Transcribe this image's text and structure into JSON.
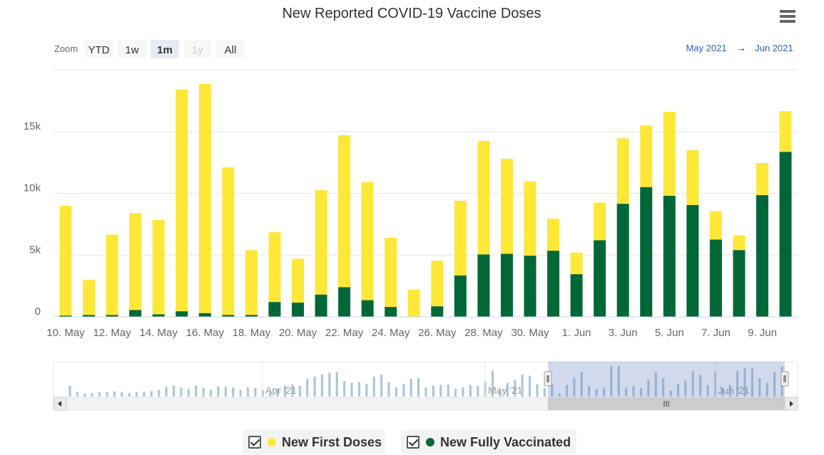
{
  "chart_data": {
    "type": "bar",
    "stacked": true,
    "title": "New Reported COVID-19 Vaccine Doses",
    "zoom": {
      "label": "Zoom",
      "buttons": [
        {
          "label": "YTD",
          "state": "normal"
        },
        {
          "label": "1w",
          "state": "normal"
        },
        {
          "label": "1m",
          "state": "selected"
        },
        {
          "label": "1y",
          "state": "disabled"
        },
        {
          "label": "All",
          "state": "normal"
        }
      ]
    },
    "range": {
      "from": "May 2021",
      "arrow": "→",
      "to": "Jun 2021"
    },
    "y_axis": {
      "min": 0,
      "max": 20000,
      "ticks": [
        0,
        5000,
        10000,
        15000
      ],
      "tick_labels": [
        "0",
        "5k",
        "10k",
        "15k"
      ]
    },
    "x_tick_labels": [
      "10. May",
      "12. May",
      "14. May",
      "16. May",
      "18. May",
      "20. May",
      "22. May",
      "24. May",
      "26. May",
      "28. May",
      "30. May",
      "1. Jun",
      "3. Jun",
      "5. Jun",
      "7. Jun",
      "9. Jun"
    ],
    "categories": [
      "10. May",
      "11. May",
      "12. May",
      "13. May",
      "14. May",
      "15. May",
      "16. May",
      "17. May",
      "18. May",
      "19. May",
      "20. May",
      "21. May",
      "22. May",
      "23. May",
      "24. May",
      "25. May",
      "26. May",
      "27. May",
      "28. May",
      "29. May",
      "30. May",
      "31. May",
      "1. Jun",
      "2. Jun",
      "3. Jun",
      "4. Jun",
      "5. Jun",
      "6. Jun",
      "7. Jun",
      "8. Jun",
      "9. Jun",
      "10. Jun"
    ],
    "series": [
      {
        "name": "New Fully Vaccinated",
        "color": "#006837",
        "values": [
          100,
          150,
          150,
          550,
          200,
          450,
          300,
          150,
          150,
          1200,
          1150,
          1800,
          2400,
          1350,
          800,
          0,
          850,
          3350,
          5050,
          5100,
          4950,
          5350,
          3450,
          6200,
          9150,
          10500,
          9800,
          9050,
          6250,
          5400,
          9850,
          13350
        ]
      },
      {
        "name": "New First Doses",
        "color": "#fde838",
        "values": [
          8900,
          2850,
          6500,
          7850,
          7650,
          17950,
          18550,
          11950,
          5250,
          5650,
          3550,
          8450,
          12300,
          9550,
          5600,
          2200,
          3700,
          6050,
          9200,
          7700,
          6000,
          2600,
          1750,
          3050,
          5300,
          5000,
          6800,
          4450,
          2300,
          1200,
          2600,
          3300
        ]
      }
    ],
    "legend": [
      {
        "label": "New First Doses",
        "color": "#fde838"
      },
      {
        "label": "New Fully Vaccinated",
        "color": "#006837"
      }
    ],
    "navigator": {
      "labels": [
        "Apr '21",
        "May '21",
        "Jun '21"
      ],
      "values": [
        0.35,
        0.15,
        0.1,
        0.12,
        0.15,
        0.15,
        0.17,
        0.15,
        0.12,
        0.15,
        0.15,
        0.18,
        0.22,
        0.32,
        0.36,
        0.3,
        0.25,
        0.36,
        0.28,
        0.22,
        0.33,
        0.32,
        0.3,
        0.22,
        0.3,
        0.28,
        0.22,
        0.15,
        0.25,
        0.35,
        0.4,
        0.35,
        0.58,
        0.65,
        0.72,
        0.78,
        0.8,
        0.5,
        0.45,
        0.48,
        0.42,
        0.65,
        0.72,
        0.48,
        0.3,
        0.42,
        0.58,
        0.6,
        0.3,
        0.35,
        0.38,
        0.4,
        0.25,
        0.3,
        0.38,
        0.35,
        0.48,
        0.85,
        0.22,
        0.45,
        0.55,
        0.72,
        0.68,
        0.4,
        0.28,
        0.4,
        0.1,
        0.38,
        0.6,
        0.8,
        0.35,
        0.25,
        0.3,
        1.0,
        1.0,
        0.3,
        0.35,
        0.28,
        0.55,
        0.8,
        0.6,
        0.2,
        0.42,
        0.52,
        0.83,
        0.72,
        0.38,
        0.8,
        0.28,
        0.38,
        0.83,
        0.92,
        0.92,
        0.6,
        0.45,
        0.8,
        0.98
      ]
    }
  }
}
